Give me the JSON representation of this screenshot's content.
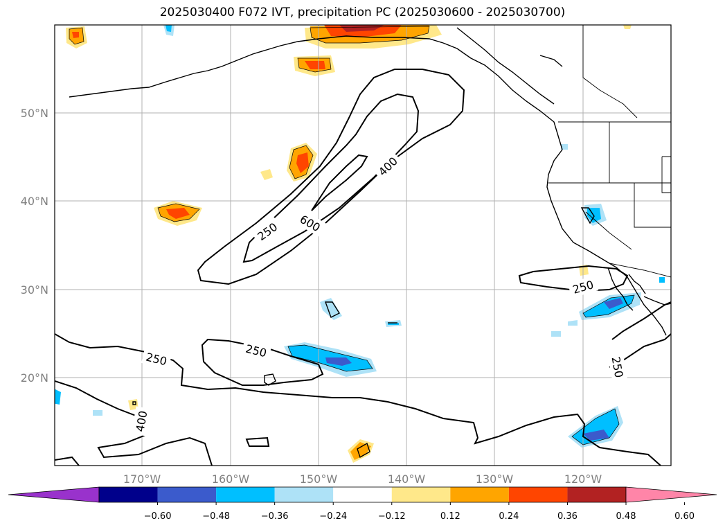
{
  "title": "2025030400 F072 IVT, precipitation PC (2025030600 - 2025030700)",
  "map": {
    "lon_ticks": [
      "170°W",
      "160°W",
      "150°W",
      "140°W",
      "130°W",
      "120°W"
    ],
    "lat_ticks": [
      "50°N",
      "40°N",
      "30°N",
      "20°N"
    ],
    "contour_labels": [
      "250",
      "400",
      "600",
      "250",
      "250",
      "250",
      "250",
      "400"
    ],
    "gridlines": true
  },
  "colorbar": {
    "ticks": [
      "−0.60",
      "−0.48",
      "−0.36",
      "−0.24",
      "−0.12",
      "0.12",
      "0.24",
      "0.36",
      "0.48",
      "0.60"
    ],
    "colors": [
      "#9932cc",
      "#00008b",
      "#3b5bcc",
      "#00bfff",
      "#aee2f7",
      "#ffffff",
      "#ffe88a",
      "#ffa500",
      "#ff4500",
      "#b22222",
      "#ff85a8"
    ],
    "extend": "both"
  }
}
